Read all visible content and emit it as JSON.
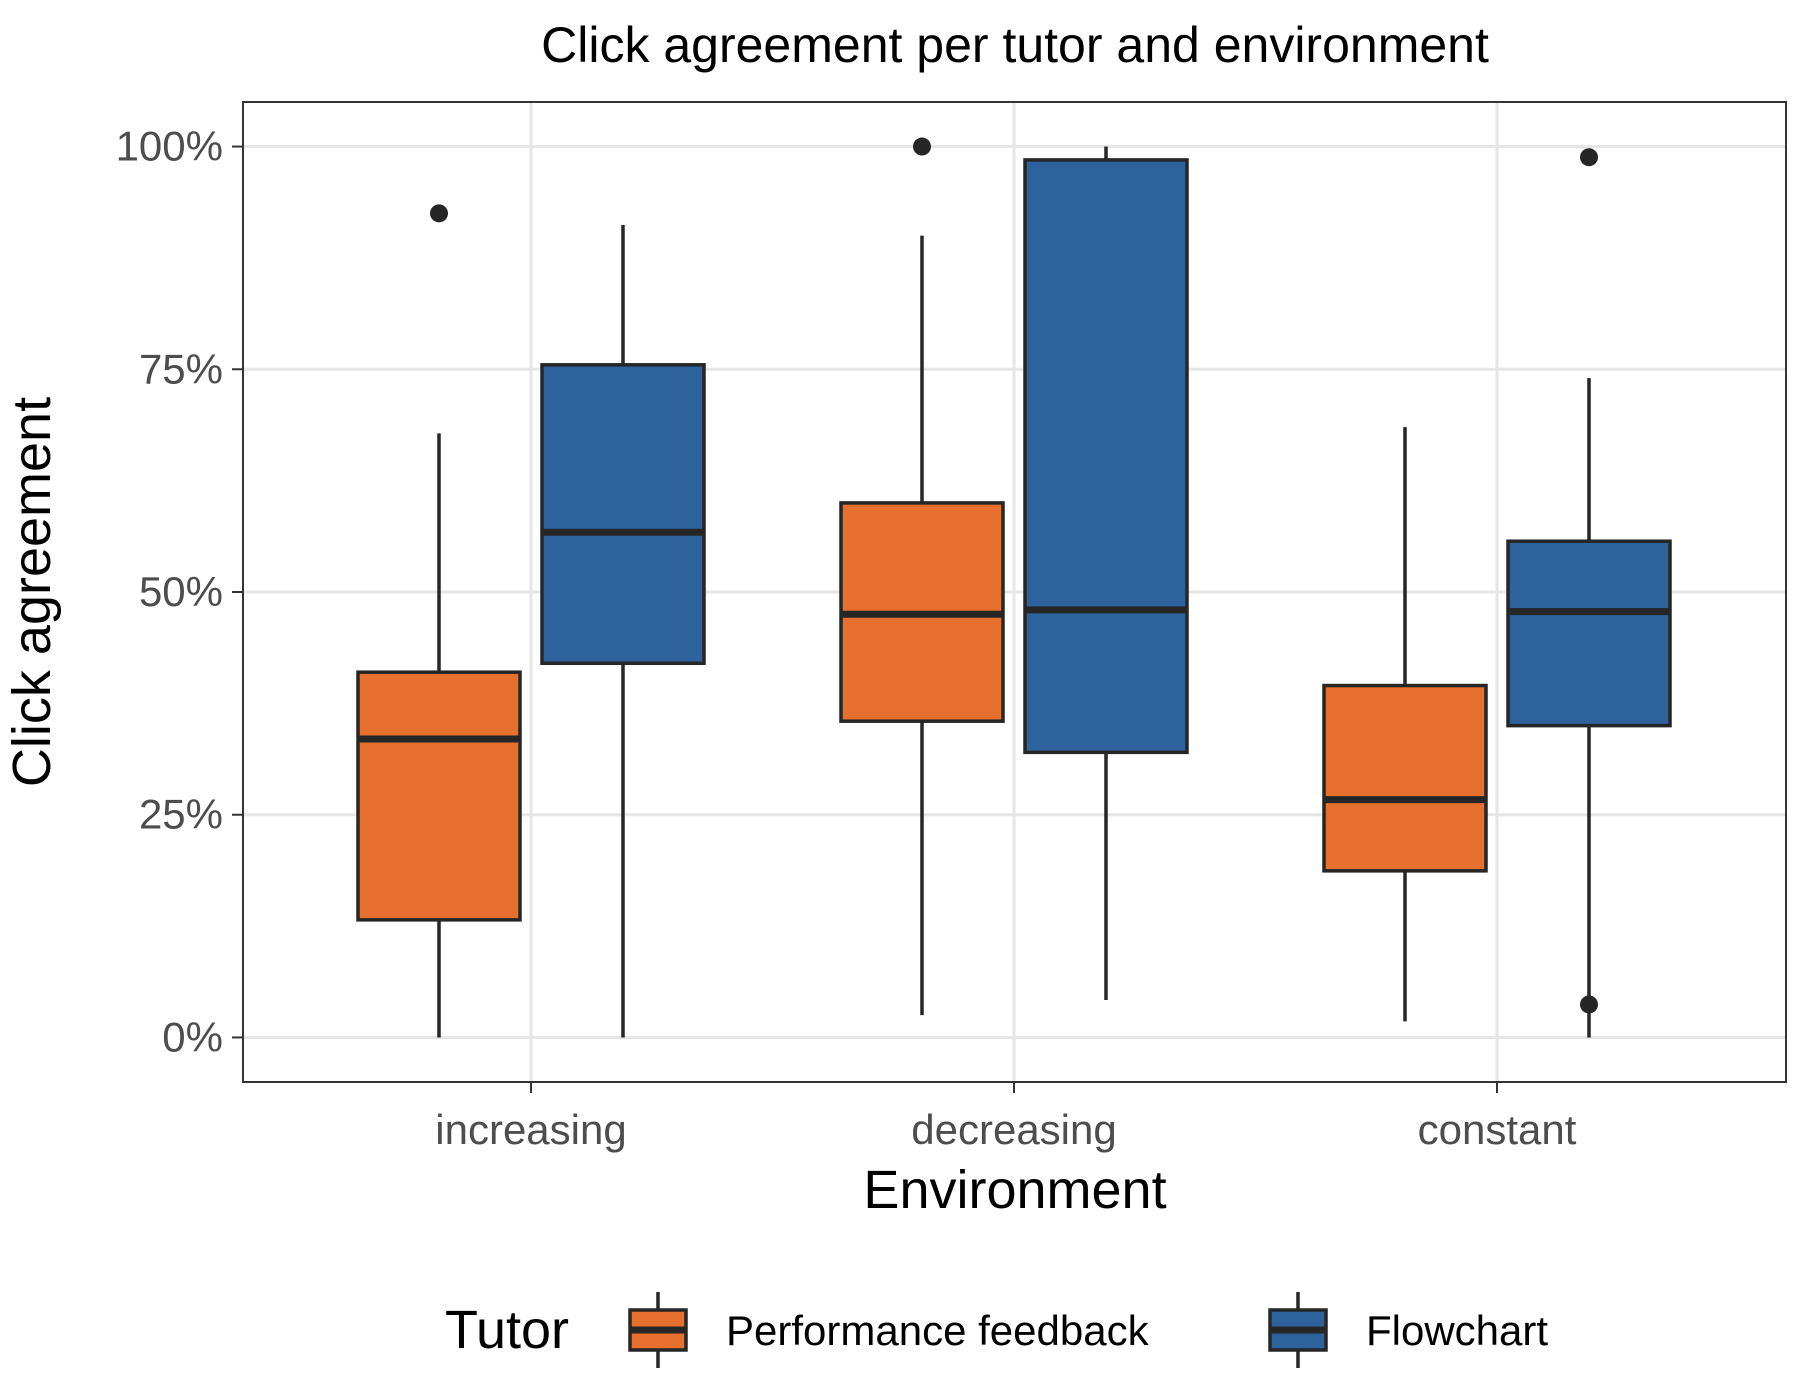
{
  "chart_data": {
    "type": "boxplot",
    "title": "Click agreement per tutor and environment",
    "xlabel": "Environment",
    "ylabel": "Click agreement",
    "categories": [
      "increasing",
      "decreasing",
      "constant"
    ],
    "ylim": [
      -0.05,
      1.05
    ],
    "yticks": [
      0,
      0.25,
      0.5,
      0.75,
      1.0
    ],
    "ytick_labels": [
      "0%",
      "25%",
      "50%",
      "75%",
      "100%"
    ],
    "grid": true,
    "legend": {
      "title": "Tutor",
      "position": "bottom"
    },
    "series": [
      {
        "name": "Performance feedback",
        "color": "#E8702E",
        "boxes": [
          {
            "category": "increasing",
            "min": 0.0,
            "q1": 0.132,
            "median": 0.335,
            "q3": 0.41,
            "max": 0.678,
            "outliers": [
              0.925
            ]
          },
          {
            "category": "decreasing",
            "min": 0.025,
            "q1": 0.355,
            "median": 0.475,
            "q3": 0.6,
            "max": 0.9,
            "outliers": [
              1.0
            ]
          },
          {
            "category": "constant",
            "min": 0.018,
            "q1": 0.187,
            "median": 0.267,
            "q3": 0.395,
            "max": 0.685,
            "outliers": []
          }
        ]
      },
      {
        "name": "Flowchart",
        "color": "#2E629D",
        "boxes": [
          {
            "category": "increasing",
            "min": 0.0,
            "q1": 0.42,
            "median": 0.567,
            "q3": 0.755,
            "max": 0.912,
            "outliers": []
          },
          {
            "category": "decreasing",
            "min": 0.042,
            "q1": 0.32,
            "median": 0.48,
            "q3": 0.985,
            "max": 1.0,
            "outliers": []
          },
          {
            "category": "constant",
            "min": 0.0,
            "q1": 0.35,
            "median": 0.478,
            "q3": 0.557,
            "max": 0.74,
            "outliers": [
              0.037,
              0.988
            ]
          }
        ]
      }
    ]
  }
}
